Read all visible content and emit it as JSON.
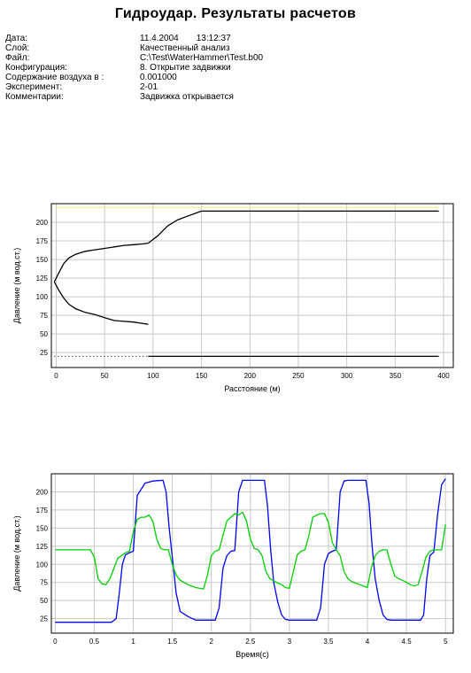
{
  "report": {
    "title": "Гидроудар. Результаты расчетов",
    "fields": [
      {
        "key": "Дата:",
        "value": "11.4.2004",
        "extra": "13:12:37"
      },
      {
        "key": "Слой:",
        "value": "Качественный анализ"
      },
      {
        "key": "Файл:",
        "value": "C:\\Test\\WaterHammer\\Test.b00"
      },
      {
        "key": "Конфигурация:",
        "value": "8. Открытие задвижки"
      },
      {
        "key": "Содержание воздуха в :",
        "value": "0.001000"
      },
      {
        "key": "Эксперимент:",
        "value": "2-01"
      },
      {
        "key": "Комментарии:",
        "value": "Задвижка открывается"
      }
    ]
  },
  "colors": {
    "grid": "#c8c8c8",
    "frame": "#000000",
    "head_line": "#f2ee7e",
    "black_series": "#000000",
    "blue_series": "#0000ff",
    "green_series": "#00d000"
  },
  "chart_data": [
    {
      "type": "line",
      "title": "",
      "xlabel": "Расстояние (м)",
      "ylabel": "Давление (м вод.ст.)",
      "xlim": [
        -5,
        410
      ],
      "ylim": [
        5,
        225
      ],
      "xticks": [
        0,
        50,
        100,
        150,
        200,
        250,
        300,
        350,
        400
      ],
      "yticks": [
        25,
        50,
        75,
        100,
        125,
        150,
        175,
        200
      ],
      "grid": true,
      "legend": "none",
      "series": [
        {
          "color_key": "head_line",
          "x": [
            -2,
            395
          ],
          "y": [
            220,
            220
          ]
        },
        {
          "color_key": "black_series",
          "x": [
            95,
            105,
            115,
            125,
            135,
            150,
            170,
            200,
            250,
            300,
            350,
            395
          ],
          "y": [
            172,
            182,
            195,
            203,
            208,
            215,
            215,
            215,
            215,
            215,
            215,
            215
          ]
        },
        {
          "color_key": "black_series",
          "x": [
            -2,
            3,
            8,
            13,
            20,
            30,
            40,
            50,
            60,
            70,
            80,
            90,
            95
          ],
          "y": [
            120,
            133,
            145,
            152,
            157,
            161,
            163,
            165,
            167,
            169,
            170,
            171,
            172
          ]
        },
        {
          "color_key": "black_series",
          "x": [
            -2,
            3,
            8,
            13,
            20,
            30,
            40,
            50,
            60,
            70,
            80,
            90,
            95
          ],
          "y": [
            120,
            108,
            98,
            90,
            84,
            79,
            76,
            72,
            68,
            67,
            66,
            64,
            63
          ]
        },
        {
          "color_key": "black_series",
          "x": [
            95,
            150,
            200,
            250,
            300,
            350,
            395
          ],
          "y": [
            20,
            20,
            20,
            20,
            20,
            20,
            20
          ]
        },
        {
          "color_key": "black_series",
          "dashed": true,
          "x": [
            -2,
            95
          ],
          "y": [
            20,
            20
          ]
        }
      ]
    },
    {
      "type": "line",
      "title": "",
      "xlabel": "Время(с)",
      "ylabel": "Давление (м вод.ст.)",
      "xlim": [
        -0.05,
        5.1
      ],
      "ylim": [
        5,
        225
      ],
      "xticks": [
        0,
        0.5,
        1,
        1.5,
        2,
        2.5,
        3,
        3.5,
        4,
        4.5,
        5
      ],
      "yticks": [
        25,
        50,
        75,
        100,
        125,
        150,
        175,
        200
      ],
      "grid": true,
      "legend": "none",
      "series": [
        {
          "color_key": "blue_series",
          "x": [
            0,
            0.72,
            0.78,
            0.82,
            0.86,
            0.9,
            0.95,
            1.0,
            1.05,
            1.15,
            1.25,
            1.38,
            1.42,
            1.46,
            1.5,
            1.55,
            1.6,
            1.7,
            1.8,
            1.9,
            2.0,
            2.05,
            2.1,
            2.15,
            2.2,
            2.25,
            2.3,
            2.35,
            2.4,
            2.5,
            2.62,
            2.68,
            2.72,
            2.76,
            2.8,
            2.85,
            2.9,
            2.95,
            3.0,
            3.1,
            3.2,
            3.35,
            3.4,
            3.45,
            3.5,
            3.55,
            3.6,
            3.65,
            3.7,
            3.75,
            3.85,
            3.98,
            4.02,
            4.06,
            4.1,
            4.15,
            4.2,
            4.25,
            4.3,
            4.4,
            4.55,
            4.68,
            4.72,
            4.76,
            4.8,
            4.85,
            4.9,
            4.95,
            5.0
          ],
          "y": [
            20,
            20,
            25,
            60,
            100,
            113,
            116,
            118,
            195,
            212,
            215,
            216,
            200,
            150,
            110,
            60,
            35,
            28,
            23,
            23,
            23,
            23,
            40,
            95,
            112,
            118,
            119,
            200,
            216,
            216,
            216,
            216,
            180,
            120,
            75,
            48,
            30,
            24,
            23,
            23,
            23,
            23,
            40,
            100,
            115,
            118,
            120,
            200,
            215,
            216,
            216,
            216,
            185,
            125,
            80,
            50,
            30,
            24,
            23,
            23,
            23,
            23,
            30,
            80,
            112,
            117,
            170,
            210,
            218
          ]
        },
        {
          "color_key": "green_series",
          "x": [
            0,
            0.45,
            0.5,
            0.55,
            0.6,
            0.65,
            0.7,
            0.8,
            0.9,
            0.95,
            1.0,
            1.05,
            1.1,
            1.15,
            1.2,
            1.25,
            1.3,
            1.35,
            1.4,
            1.45,
            1.5,
            1.55,
            1.6,
            1.65,
            1.7,
            1.8,
            1.9,
            1.95,
            2.0,
            2.05,
            2.1,
            2.15,
            2.2,
            2.25,
            2.3,
            2.35,
            2.4,
            2.45,
            2.5,
            2.55,
            2.6,
            2.65,
            2.7,
            2.75,
            2.8,
            2.85,
            2.9,
            2.95,
            3.0,
            3.05,
            3.1,
            3.15,
            3.2,
            3.25,
            3.3,
            3.35,
            3.4,
            3.45,
            3.5,
            3.55,
            3.6,
            3.65,
            3.7,
            3.75,
            3.8,
            3.85,
            3.9,
            3.95,
            4.0,
            4.05,
            4.1,
            4.15,
            4.2,
            4.25,
            4.3,
            4.35,
            4.4,
            4.45,
            4.5,
            4.55,
            4.6,
            4.65,
            4.7,
            4.75,
            4.8,
            4.85,
            4.9,
            4.95,
            5.0
          ],
          "y": [
            120,
            120,
            110,
            80,
            73,
            72,
            80,
            108,
            116,
            118,
            145,
            162,
            165,
            165,
            168,
            160,
            135,
            122,
            120,
            120,
            100,
            85,
            78,
            75,
            72,
            68,
            66,
            85,
            112,
            118,
            120,
            140,
            160,
            165,
            170,
            168,
            172,
            160,
            135,
            122,
            120,
            112,
            90,
            80,
            77,
            74,
            72,
            68,
            67,
            90,
            113,
            118,
            120,
            140,
            165,
            168,
            170,
            170,
            158,
            130,
            120,
            112,
            90,
            80,
            76,
            74,
            72,
            70,
            68,
            95,
            112,
            118,
            120,
            120,
            100,
            84,
            80,
            78,
            75,
            72,
            70,
            72,
            90,
            110,
            118,
            120,
            120,
            120,
            155
          ]
        }
      ]
    }
  ]
}
